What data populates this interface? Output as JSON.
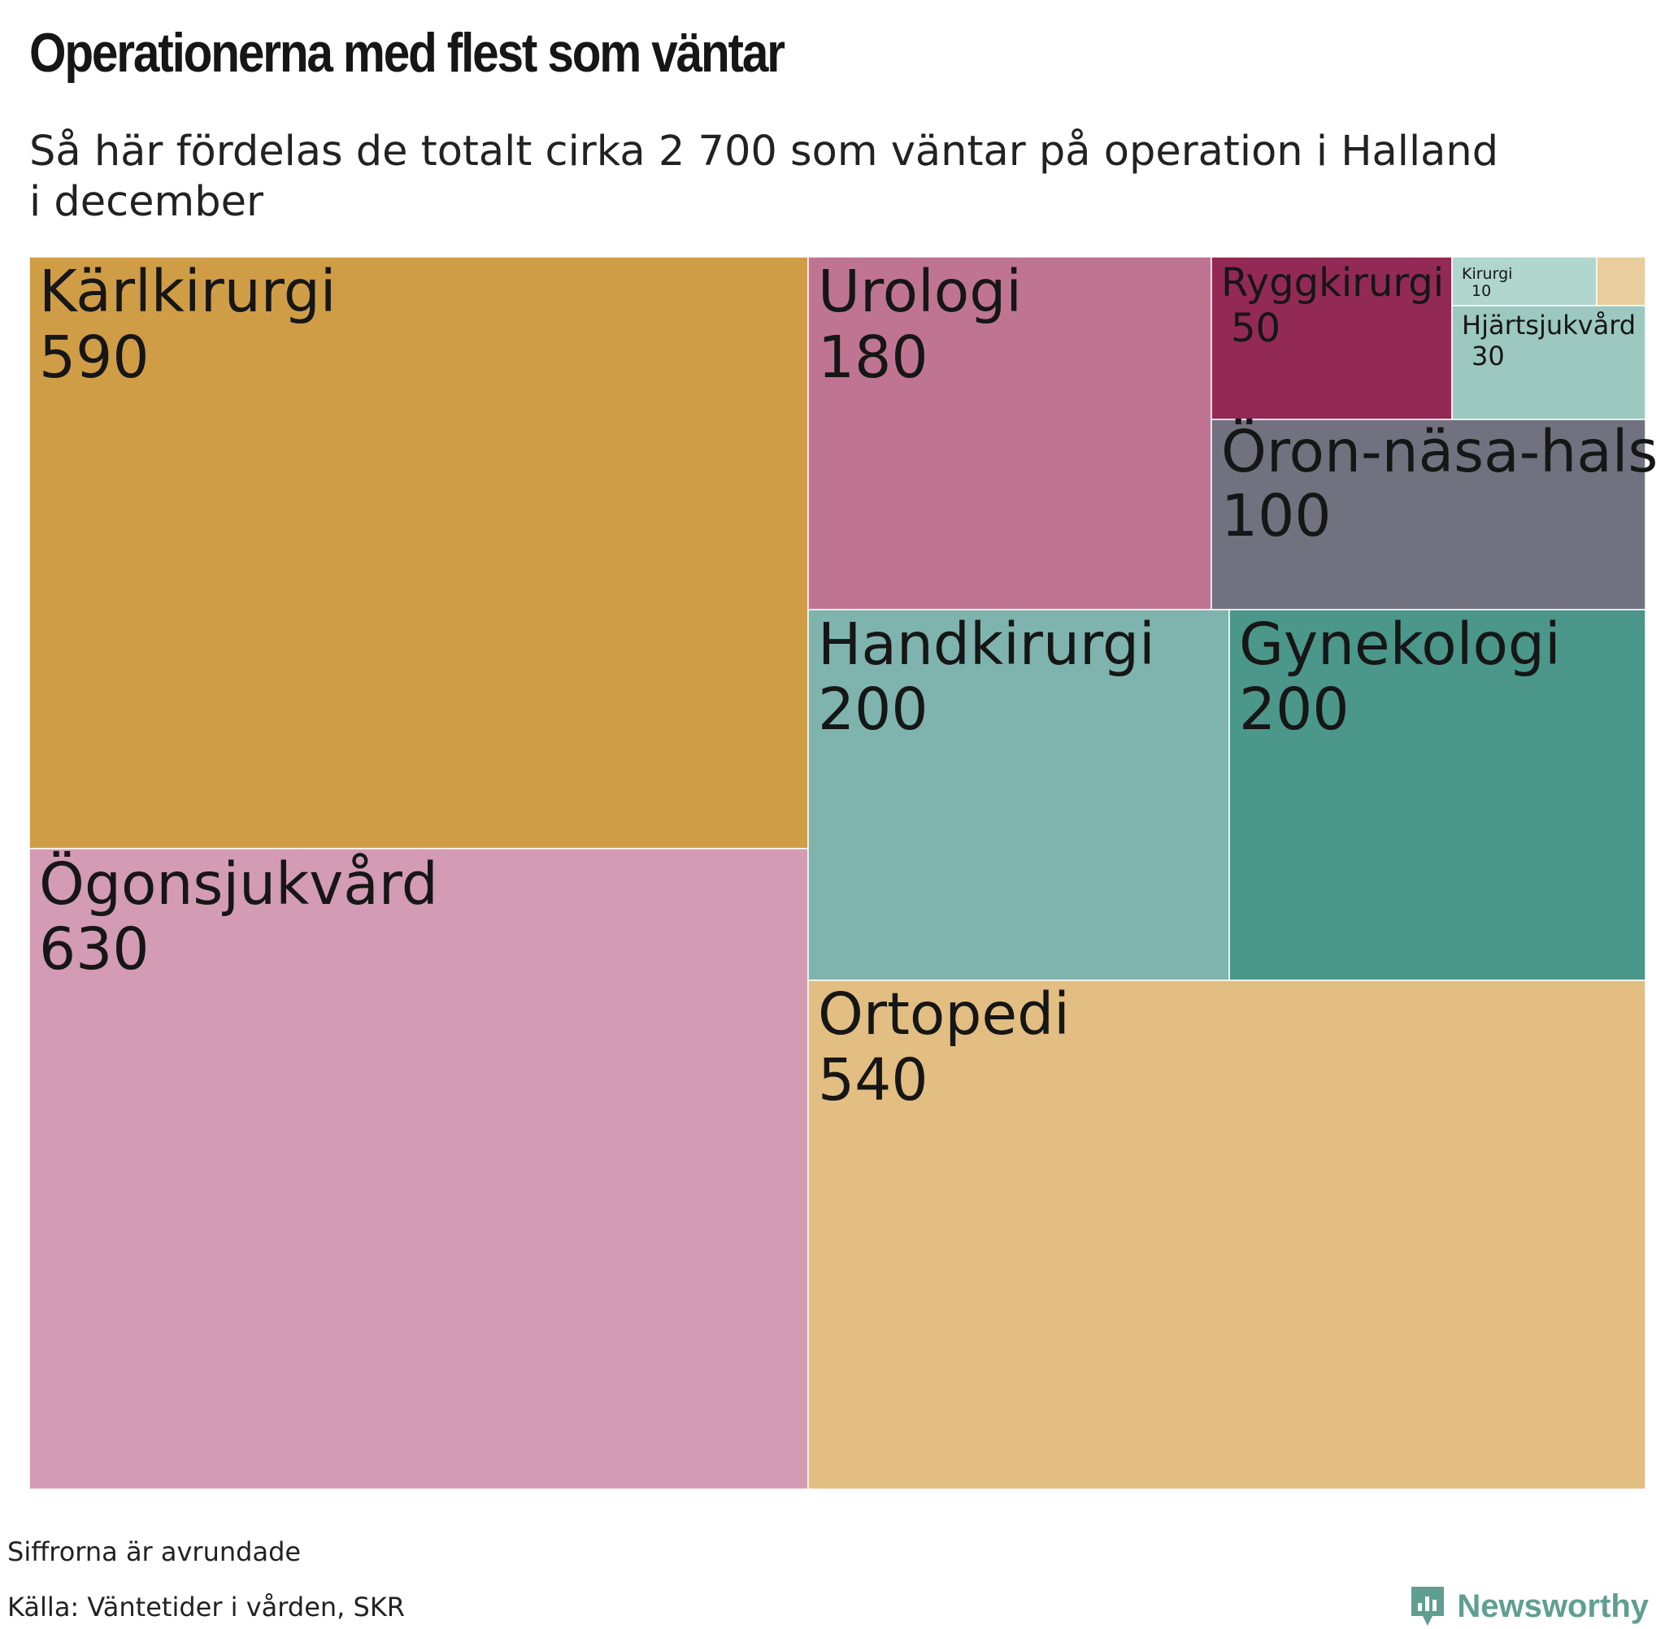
{
  "header": {
    "title": "Operationerna med flest som väntar",
    "subtitle": "Så här fördelas de totalt cirka 2 700 som väntar på operation i Halland i december"
  },
  "chart_data": {
    "type": "treemap",
    "title": "Operationerna med flest som väntar",
    "subtitle": "Så här fördelas de totalt cirka 2 700 som väntar på operation i Halland i december",
    "items": [
      {
        "name": "Kärlkirurgi",
        "value": 590,
        "color": "#d09d47"
      },
      {
        "name": "Ögonsjukvård",
        "value": 630,
        "color": "#d39bb4"
      },
      {
        "name": "Urologi",
        "value": 180,
        "color": "#bf7591"
      },
      {
        "name": "Ryggkirurgi",
        "value": 50,
        "color": "#922a55"
      },
      {
        "name": "Kirurgi",
        "value": 10,
        "color": "#b0d6cd"
      },
      {
        "name": "",
        "value": null,
        "color": "#e9cd9e"
      },
      {
        "name": "Hjärtsjukvård",
        "value": 30,
        "color": "#9cc8bf"
      },
      {
        "name": "Öron-näsa-hals",
        "value": 100,
        "color": "#72717f"
      },
      {
        "name": "Handkirurgi",
        "value": 200,
        "color": "#7eb4ad"
      },
      {
        "name": "Gynekologi",
        "value": 200,
        "color": "#4b978a"
      },
      {
        "name": "Ortopedi",
        "value": 540,
        "color": "#e2be82"
      }
    ]
  },
  "footer": {
    "note": "Siffrorna är avrundade",
    "source": "Källa: Väntetider i vården, SKR",
    "brand": "Newsworthy",
    "brand_icon": "newsworthy-logo-icon",
    "brand_color": "#5f9f91"
  }
}
